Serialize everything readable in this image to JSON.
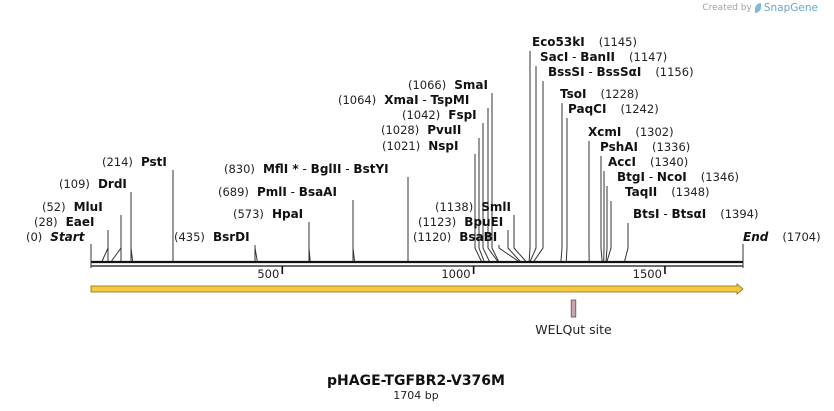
{
  "brand": {
    "created_by": "Created by",
    "product": "SnapGene",
    "logo_icon": "snapgene-leaf-icon"
  },
  "plasmid": {
    "name": "pHAGE-TGFBR2-V376M",
    "length_label": "1704 bp",
    "length": 1704
  },
  "ends": {
    "start_label": "Start",
    "start_pos": "(0)",
    "end_label": "End",
    "end_pos": "(1704)"
  },
  "ruler": {
    "ticks": [
      {
        "pos": 500,
        "label": "500"
      },
      {
        "pos": 1000,
        "label": "1000"
      },
      {
        "pos": 1500,
        "label": "1500"
      }
    ]
  },
  "left_sites": [
    {
      "pos_text": "(28)",
      "names": [
        "EaeI"
      ],
      "cut": 28
    },
    {
      "pos_text": "(52)",
      "names": [
        "MluI"
      ],
      "cut": 52
    },
    {
      "pos_text": "(109)",
      "names": [
        "DrdI"
      ],
      "cut": 109
    },
    {
      "pos_text": "(214)",
      "names": [
        "PstI"
      ],
      "cut": 214
    },
    {
      "pos_text": "(435)",
      "names": [
        "BsrDI"
      ],
      "cut": 435
    },
    {
      "pos_text": "(573)",
      "names": [
        "HpaI"
      ],
      "cut": 573
    },
    {
      "pos_text": "(689)",
      "names": [
        "PmlI",
        "BsaAI"
      ],
      "cut": 689
    },
    {
      "pos_text": "(830)",
      "names": [
        "MflI *",
        "BglII",
        "BstYI"
      ],
      "cut": 830
    }
  ],
  "middle_sites": [
    {
      "pos_text": "(1021)",
      "names": [
        "NspI"
      ],
      "cut": 1021
    },
    {
      "pos_text": "(1028)",
      "names": [
        "PvuII"
      ],
      "cut": 1028
    },
    {
      "pos_text": "(1042)",
      "names": [
        "FspI"
      ],
      "cut": 1042
    },
    {
      "pos_text": "(1064)",
      "names": [
        "XmaI",
        "TspMI"
      ],
      "cut": 1064
    },
    {
      "pos_text": "(1066)",
      "names": [
        "SmaI"
      ],
      "cut": 1066
    },
    {
      "pos_text": "(1120)",
      "names": [
        "BsaBI"
      ],
      "cut": 1120
    },
    {
      "pos_text": "(1123)",
      "names": [
        "BpuEI"
      ],
      "cut": 1123
    },
    {
      "pos_text": "(1138)",
      "names": [
        "SmlI"
      ],
      "cut": 1138
    }
  ],
  "right_sites": [
    {
      "pos_text": "(1145)",
      "names": [
        "Eco53kI"
      ],
      "cut": 1145
    },
    {
      "pos_text": "(1147)",
      "names": [
        "SacI",
        "BanII"
      ],
      "cut": 1147
    },
    {
      "pos_text": "(1156)",
      "names": [
        "BssSI",
        "BssSαI"
      ],
      "cut": 1156
    },
    {
      "pos_text": "(1228)",
      "names": [
        "TsoI"
      ],
      "cut": 1228
    },
    {
      "pos_text": "(1242)",
      "names": [
        "PaqCI"
      ],
      "cut": 1242
    },
    {
      "pos_text": "(1302)",
      "names": [
        "XcmI"
      ],
      "cut": 1302
    },
    {
      "pos_text": "(1336)",
      "names": [
        "PshAI"
      ],
      "cut": 1336
    },
    {
      "pos_text": "(1340)",
      "names": [
        "AccI"
      ],
      "cut": 1340
    },
    {
      "pos_text": "(1346)",
      "names": [
        "BtgI",
        "NcoI"
      ],
      "cut": 1346
    },
    {
      "pos_text": "(1348)",
      "names": [
        "TaqII"
      ],
      "cut": 1348
    },
    {
      "pos_text": "(1394)",
      "names": [
        "BtsI",
        "BtsαI"
      ],
      "cut": 1394
    }
  ],
  "features": [
    {
      "name": "orf-arrow",
      "kind": "arrow",
      "start": 0,
      "end": 1704,
      "color": "#f5c842"
    },
    {
      "name": "welqut-site",
      "label": "WELQut site",
      "kind": "box",
      "start": 1255,
      "end": 1267,
      "color": "#c9a5b4"
    }
  ],
  "colors": {
    "backbone": "#111111",
    "line": "#333333"
  }
}
